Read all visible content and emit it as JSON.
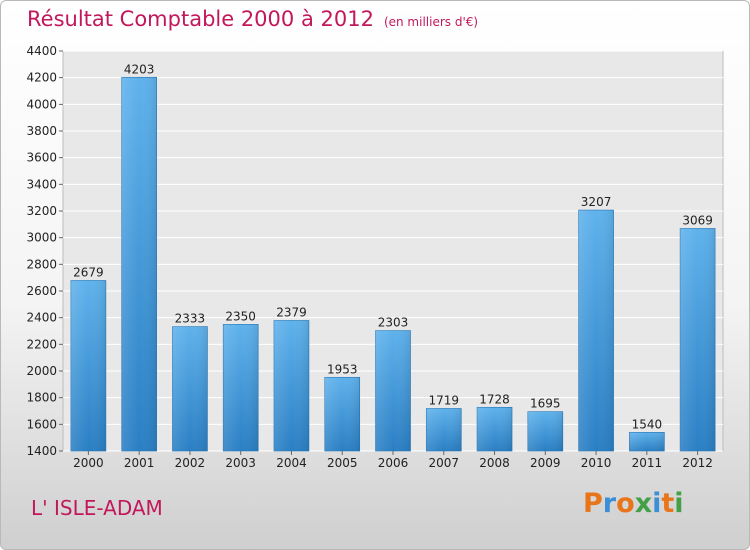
{
  "header": {
    "title": "Résultat Comptable 2000 à 2012",
    "subtitle": "(en milliers d'€)"
  },
  "footer": {
    "commune": "L' ISLE-ADAM",
    "logo": "Proxiti",
    "logo_colors": [
      "#e8751a",
      "#3a8fd6",
      "#e8751a",
      "#43a047",
      "#3a8fd6",
      "#e8751a",
      "#43a047"
    ]
  },
  "chart_data": {
    "type": "bar",
    "title": "Résultat Comptable 2000 à 2012",
    "subtitle": "(en milliers d'€)",
    "categories": [
      "2000",
      "2001",
      "2002",
      "2003",
      "2004",
      "2005",
      "2006",
      "2007",
      "2008",
      "2009",
      "2010",
      "2011",
      "2012"
    ],
    "values": [
      2679,
      4203,
      2333,
      2350,
      2379,
      1953,
      2303,
      1719,
      1728,
      1695,
      3207,
      1540,
      3069
    ],
    "ylim": [
      1400,
      4400
    ],
    "yticks": [
      1400,
      1600,
      1800,
      2000,
      2200,
      2400,
      2600,
      2800,
      3000,
      3200,
      3400,
      3600,
      3800,
      4000,
      4200,
      4400
    ],
    "grid": true,
    "bar_color": "#4a9fdf",
    "xlabel": "",
    "ylabel": ""
  }
}
